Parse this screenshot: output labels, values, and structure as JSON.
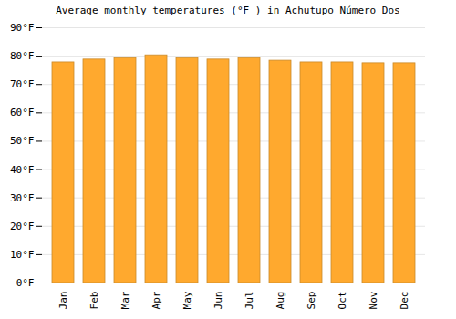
{
  "chart_data": {
    "type": "bar",
    "title": "Average monthly temperatures (°F ) in Achutupo Número Dos",
    "categories": [
      "Jan",
      "Feb",
      "Mar",
      "Apr",
      "May",
      "Jun",
      "Jul",
      "Aug",
      "Sep",
      "Oct",
      "Nov",
      "Dec"
    ],
    "values": [
      77.8,
      78.8,
      79.3,
      80.3,
      79.3,
      78.8,
      79.3,
      78.4,
      77.8,
      77.8,
      77.5,
      77.5
    ],
    "color": "#ffa92e",
    "ylim": [
      0,
      90
    ],
    "yticks": [
      {
        "value": 0,
        "label": "0°F"
      },
      {
        "value": 10,
        "label": "10°F"
      },
      {
        "value": 20,
        "label": "20°F"
      },
      {
        "value": 30,
        "label": "30°F"
      },
      {
        "value": 40,
        "label": "40°F"
      },
      {
        "value": 50,
        "label": "50°F"
      },
      {
        "value": 60,
        "label": "60°F"
      },
      {
        "value": 70,
        "label": "70°F"
      },
      {
        "value": 80,
        "label": "80°F"
      },
      {
        "value": 90,
        "label": "90°F"
      }
    ],
    "grid": true
  }
}
